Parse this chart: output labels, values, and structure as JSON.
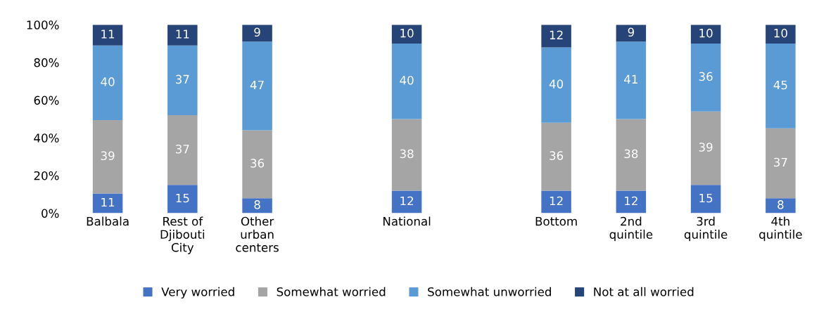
{
  "chart_data": {
    "type": "bar",
    "stacked": true,
    "categories": [
      "Balbala",
      "Rest of\nDjibouti\nCity",
      "Other\nurban\ncenters",
      null,
      "National",
      null,
      "Bottom",
      "2nd\nquintile",
      "3rd\nquintile",
      "4th\nquintile"
    ],
    "series": [
      {
        "name": "Very worried",
        "color": "#4472c4",
        "values": [
          10.5,
          15,
          8,
          null,
          12,
          null,
          12,
          12,
          15,
          8
        ],
        "value_labels": [
          "11",
          "15",
          "8",
          null,
          "12",
          null,
          "12",
          "12",
          "15",
          "8"
        ]
      },
      {
        "name": "Somewhat worried",
        "color": "#a5a5a5",
        "values": [
          38.9,
          37,
          36,
          null,
          38,
          null,
          36,
          38,
          39,
          37
        ],
        "value_labels": [
          "39",
          "37",
          "36",
          null,
          "38",
          null,
          "36",
          "38",
          "39",
          "37"
        ]
      },
      {
        "name": "Somewhat unworried",
        "color": "#5b9bd5",
        "values": [
          39.6,
          37,
          47,
          null,
          40,
          null,
          40,
          41,
          36,
          45
        ],
        "value_labels": [
          "40",
          "37",
          "47",
          null,
          "40",
          null,
          "40",
          "41",
          "36",
          "45"
        ]
      },
      {
        "name": "Not at all worried",
        "color": "#264478",
        "values": [
          11,
          11,
          9,
          null,
          10,
          null,
          12,
          9,
          10,
          10
        ],
        "value_labels": [
          "11",
          "11",
          "9",
          null,
          "10",
          null,
          "12",
          "9",
          "10",
          "10"
        ]
      }
    ],
    "ylim": [
      0,
      100
    ],
    "yticks": [
      {
        "value": 0,
        "label": "0%"
      },
      {
        "value": 20,
        "label": "20%"
      },
      {
        "value": 40,
        "label": "40%"
      },
      {
        "value": 60,
        "label": "60%"
      },
      {
        "value": 80,
        "label": "80%"
      },
      {
        "value": 100,
        "label": "100%"
      }
    ],
    "grid": false,
    "legend": "bottom"
  }
}
